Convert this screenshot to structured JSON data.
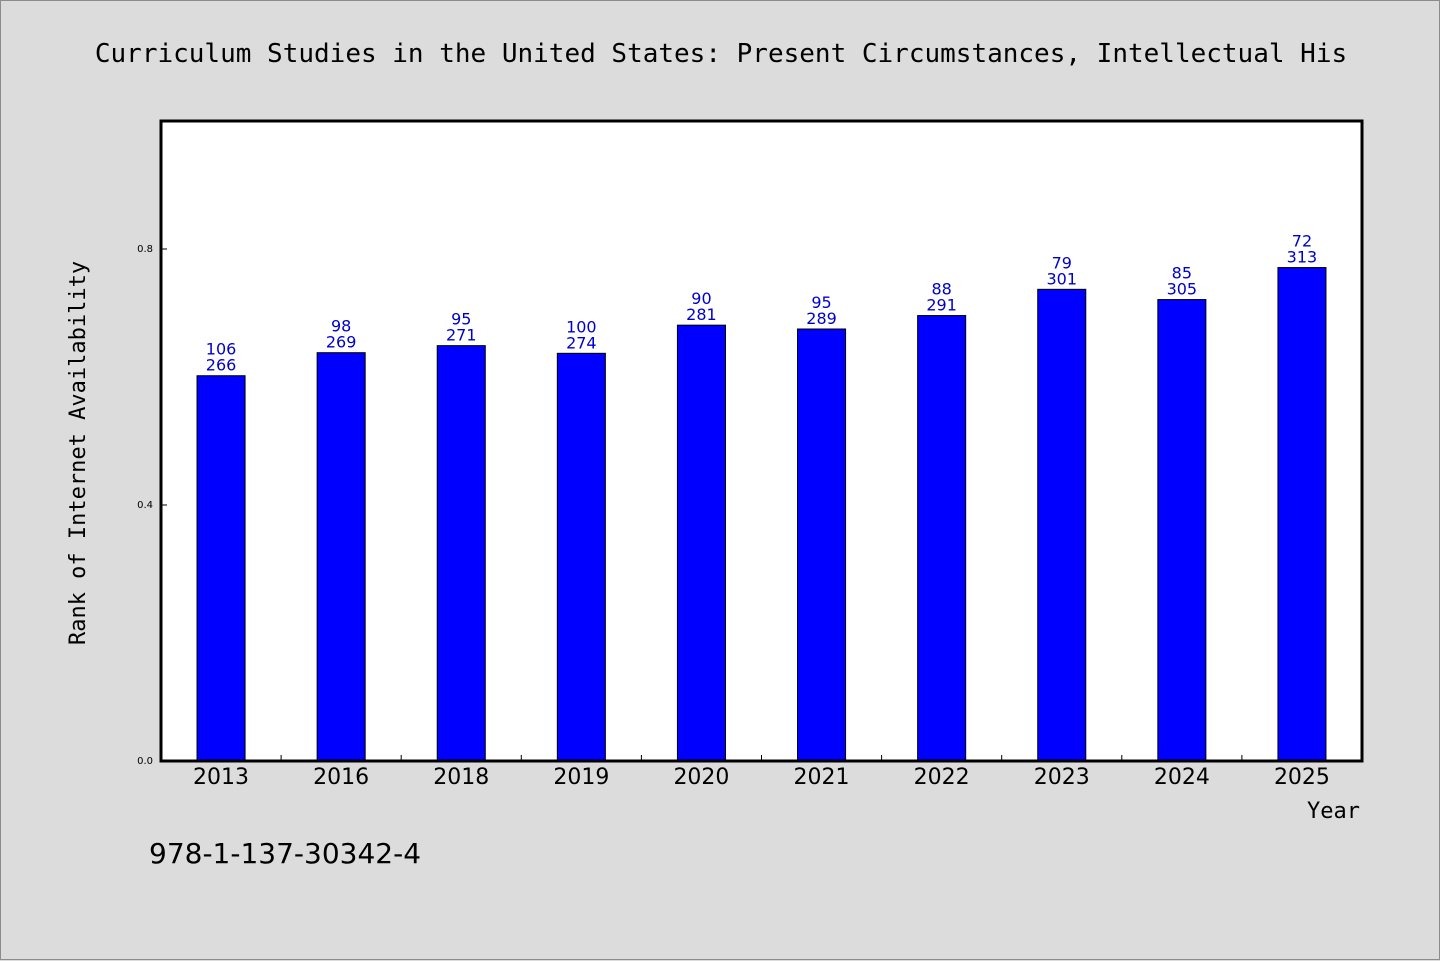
{
  "chart_data": {
    "type": "bar",
    "title": "Curriculum Studies in the United States: Present Circumstances, Intellectual His",
    "xlabel": "Year",
    "ylabel": "Rank of Internet Availability",
    "categories": [
      "2013",
      "2016",
      "2018",
      "2019",
      "2020",
      "2021",
      "2022",
      "2023",
      "2024",
      "2025"
    ],
    "values": [
      0.602,
      0.638,
      0.649,
      0.637,
      0.681,
      0.675,
      0.696,
      0.737,
      0.721,
      0.771
    ],
    "labels_top": [
      "106",
      "98",
      "95",
      "100",
      "90",
      "95",
      "88",
      "79",
      "85",
      "72"
    ],
    "labels_bottom": [
      "266",
      "269",
      "271",
      "274",
      "281",
      "289",
      "291",
      "301",
      "305",
      "313"
    ],
    "ylim": [
      0,
      1.0
    ],
    "yticks": [
      0.0,
      0.4,
      0.8
    ],
    "ytick_labels": [
      "0.0",
      "0.4",
      "0.8"
    ],
    "grid": false,
    "bar_color": "#0000ff",
    "label_color": "#0000cc"
  },
  "footer_text": "978-1-137-30342-4"
}
